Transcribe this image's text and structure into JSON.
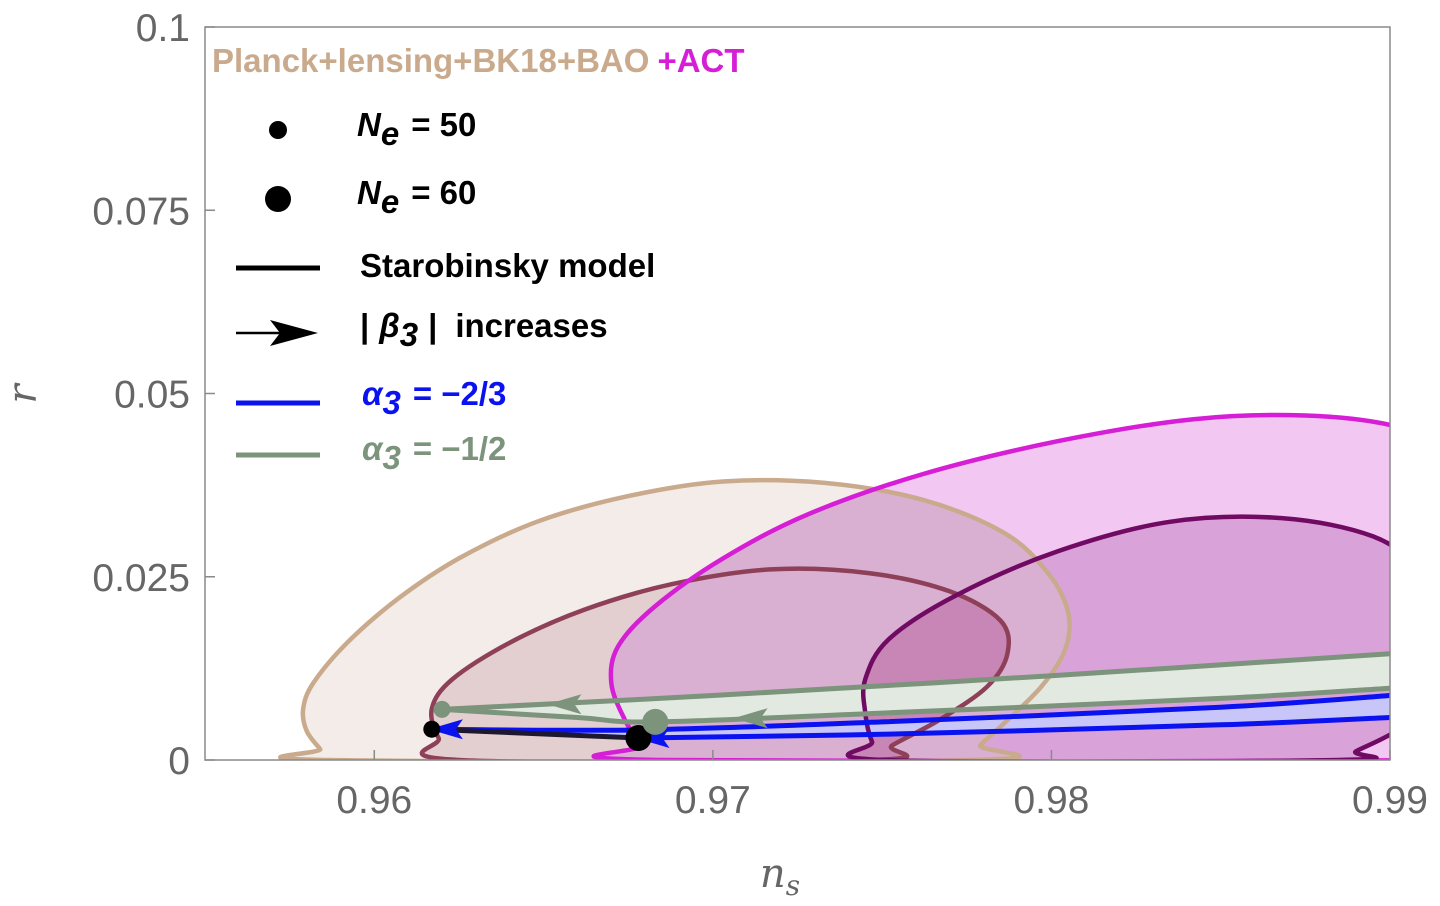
{
  "chart_data": {
    "type": "contour",
    "xlabel": "n",
    "xlabel_sub": "s",
    "ylabel": "r",
    "xlim": [
      0.955,
      0.99
    ],
    "ylim": [
      0,
      0.1
    ],
    "x_ticks": [
      0.96,
      0.97,
      0.98,
      0.99
    ],
    "x_tick_labels": [
      "0.96",
      "0.97",
      "0.98",
      "0.99"
    ],
    "y_ticks": [
      0,
      0.025,
      0.05,
      0.075,
      0.1
    ],
    "y_tick_labels": [
      "0",
      "0.025",
      "0.05",
      "0.075",
      "0.1"
    ],
    "grid": false,
    "legend_placement": "top-left",
    "colors": {
      "planck_fill_95": "#f3ece8",
      "planck_line_95": "#c9aa8c",
      "planck_fill_68": "#e3cfcf",
      "planck_line_68": "#8e4058",
      "act_fill_95": "#f2c8f2",
      "act_line_95": "#d51ed5",
      "act_fill_68": "#d9a2d9",
      "act_line_68": "#700a63",
      "overlap_fill_95": "#d9b0d2",
      "overlap_fill_68": "#c47fb2",
      "blue": "#0b12f0",
      "blue_band": "#c8c6f8",
      "green": "#7b947b",
      "green_band": "#e2e9e0",
      "black": "#000000"
    },
    "legend": {
      "title_planck": "Planck+lensing+BK18+BAO",
      "title_act": "+ACT",
      "ne50": {
        "sym": "N",
        "sub": "e",
        "rest": "= 50"
      },
      "ne60": {
        "sym": "N",
        "sub": "e",
        "rest": "= 60"
      },
      "starobinsky": "Starobinsky model",
      "beta": {
        "pre": "|",
        "sym": "β",
        "sub": "3",
        "post": "|",
        "text": "increases"
      },
      "alpha_blue": {
        "sym": "α",
        "sub": "3",
        "rest": "= −2/3"
      },
      "alpha_green": {
        "sym": "α",
        "sub": "3",
        "rest": "= −1/2"
      }
    },
    "regions": [
      {
        "name": "planck-95",
        "points": [
          [
            0.9587,
            0
          ],
          [
            0.9584,
            0.0015
          ],
          [
            0.958,
            0.004
          ],
          [
            0.9579,
            0.007
          ],
          [
            0.9582,
            0.0105
          ],
          [
            0.9592,
            0.016
          ],
          [
            0.9607,
            0.022
          ],
          [
            0.9625,
            0.0275
          ],
          [
            0.9648,
            0.0325
          ],
          [
            0.9675,
            0.036
          ],
          [
            0.9703,
            0.038
          ],
          [
            0.9733,
            0.0378
          ],
          [
            0.9762,
            0.0355
          ],
          [
            0.9786,
            0.031
          ],
          [
            0.9799,
            0.0255
          ],
          [
            0.9805,
            0.02
          ],
          [
            0.9804,
            0.015
          ],
          [
            0.9797,
            0.01
          ],
          [
            0.9786,
            0.005
          ],
          [
            0.9779,
            0.002
          ],
          [
            0.9776,
            0
          ]
        ]
      },
      {
        "name": "planck-68",
        "points": [
          [
            0.9625,
            0
          ],
          [
            0.9619,
            0.003
          ],
          [
            0.9617,
            0.007
          ],
          [
            0.9623,
            0.011
          ],
          [
            0.964,
            0.016
          ],
          [
            0.9662,
            0.0205
          ],
          [
            0.9688,
            0.024
          ],
          [
            0.9717,
            0.026
          ],
          [
            0.9746,
            0.0255
          ],
          [
            0.977,
            0.023
          ],
          [
            0.9785,
            0.019
          ],
          [
            0.9787,
            0.0145
          ],
          [
            0.9781,
            0.01
          ],
          [
            0.9767,
            0.0055
          ],
          [
            0.9753,
            0.002
          ],
          [
            0.9747,
            0
          ]
        ]
      },
      {
        "name": "act-95",
        "points": [
          [
            0.9684,
            0
          ],
          [
            0.9679,
            0.002
          ],
          [
            0.9674,
            0.0055
          ],
          [
            0.967,
            0.0105
          ],
          [
            0.9672,
            0.0155
          ],
          [
            0.9683,
            0.021
          ],
          [
            0.9703,
            0.0275
          ],
          [
            0.9728,
            0.0335
          ],
          [
            0.9762,
            0.039
          ],
          [
            0.9802,
            0.0435
          ],
          [
            0.9842,
            0.0465
          ],
          [
            0.9875,
            0.047
          ],
          [
            0.9902,
            0.0455
          ],
          [
            0.9918,
            0.042
          ],
          [
            0.9936,
            0.0355
          ],
          [
            0.9949,
            0.0275
          ],
          [
            0.9953,
            0.019
          ],
          [
            0.9958,
            0.0125
          ],
          [
            0.9955,
            0.0085
          ],
          [
            0.9946,
            0.0045
          ],
          [
            0.9932,
            0.0015
          ],
          [
            0.9925,
            0
          ]
        ]
      },
      {
        "name": "act-68",
        "points": [
          [
            0.9751,
            0
          ],
          [
            0.9747,
            0.0025
          ],
          [
            0.9745,
            0.0065
          ],
          [
            0.9745,
            0.011
          ],
          [
            0.9752,
            0.0165
          ],
          [
            0.9772,
            0.0225
          ],
          [
            0.9802,
            0.0285
          ],
          [
            0.9835,
            0.0325
          ],
          [
            0.9868,
            0.033
          ],
          [
            0.9895,
            0.0305
          ],
          [
            0.9911,
            0.0255
          ],
          [
            0.9922,
            0.0195
          ],
          [
            0.9922,
            0.0135
          ],
          [
            0.9915,
            0.0085
          ],
          [
            0.9902,
            0.004
          ],
          [
            0.989,
            0.0012
          ],
          [
            0.9885,
            0
          ]
        ]
      }
    ],
    "series": [
      {
        "name": "Starobinsky model",
        "type": "curve",
        "x": [
          0.9617,
          0.9678
        ],
        "y": [
          0.0042,
          0.003
        ]
      },
      {
        "name": "α3 = −2/3 upper",
        "type": "curve",
        "x": [
          0.9617,
          0.9678,
          0.975,
          0.985,
          0.99
        ],
        "y": [
          0.0042,
          0.0041,
          0.0052,
          0.0072,
          0.0088
        ]
      },
      {
        "name": "α3 = −2/3 lower",
        "type": "curve",
        "x": [
          0.9678,
          0.975,
          0.985,
          0.99
        ],
        "y": [
          0.003,
          0.0035,
          0.0048,
          0.0058
        ]
      },
      {
        "name": "α3 = −1/2 upper",
        "type": "curve",
        "x": [
          0.962,
          0.97,
          0.98,
          0.99
        ],
        "y": [
          0.0069,
          0.0088,
          0.0115,
          0.0145
        ]
      },
      {
        "name": "α3 = −1/2 lower",
        "type": "curve",
        "x": [
          0.962,
          0.966,
          0.9683,
          0.975,
          0.985,
          0.99
        ],
        "y": [
          0.0069,
          0.0058,
          0.0052,
          0.0064,
          0.0084,
          0.0098
        ]
      }
    ],
    "points": [
      {
        "name": "starobinsky-ne50",
        "x": 0.9617,
        "y": 0.0042,
        "size": "small",
        "color": "#000000"
      },
      {
        "name": "starobinsky-ne60",
        "x": 0.9678,
        "y": 0.003,
        "size": "large",
        "color": "#000000"
      },
      {
        "name": "green-ne50",
        "x": 0.962,
        "y": 0.0069,
        "size": "small",
        "color": "#7b947b"
      },
      {
        "name": "green-ne60",
        "x": 0.9683,
        "y": 0.0052,
        "size": "large",
        "color": "#7b947b"
      }
    ],
    "arrows": [
      {
        "name": "blue-arrow-upper",
        "x": 0.9625,
        "y": 0.0042,
        "dir": "left",
        "color": "#0b12f0"
      },
      {
        "name": "blue-arrow-lower",
        "x": 0.9686,
        "y": 0.003,
        "dir": "left",
        "color": "#0b12f0"
      },
      {
        "name": "green-arrow-upper",
        "x": 0.966,
        "y": 0.0076,
        "dir": "left",
        "color": "#7b947b"
      },
      {
        "name": "green-arrow-lower",
        "x": 0.9715,
        "y": 0.0057,
        "dir": "left",
        "color": "#7b947b"
      }
    ]
  }
}
